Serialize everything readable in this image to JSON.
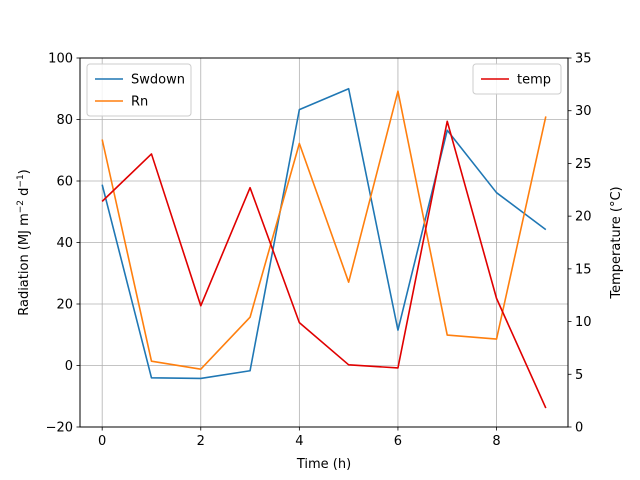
{
  "chart_data": {
    "type": "line",
    "x": [
      0,
      1,
      2,
      3,
      4,
      5,
      6,
      7,
      8,
      9
    ],
    "xlabel": "Time (h)",
    "xlim": [
      -0.45,
      9.45
    ],
    "xticks": [
      0,
      2,
      4,
      6,
      8
    ],
    "ylabel_left": "Radiation (MJ m−2 d−1)",
    "ylim_left": [
      -20,
      100
    ],
    "yticks_left": [
      -20,
      0,
      20,
      40,
      60,
      80,
      100
    ],
    "ylabel_right": "Temperature (°C)",
    "ylim_right": [
      0,
      35
    ],
    "yticks_right": [
      0,
      5,
      10,
      15,
      20,
      25,
      30,
      35
    ],
    "grid": true,
    "legend_left": "top-left",
    "legend_right": "top-right",
    "series": [
      {
        "name": "Swdown",
        "axis": "left",
        "color": "#1f77b4",
        "values": [
          58.8,
          -4.0,
          -4.2,
          -1.7,
          83.2,
          90.0,
          11.5,
          76.5,
          56.2,
          44.2
        ]
      },
      {
        "name": "Rn",
        "axis": "left",
        "color": "#ff7f0e",
        "values": [
          73.5,
          1.4,
          -1.2,
          15.7,
          72.2,
          27.1,
          89.2,
          9.9,
          8.6,
          81.0
        ]
      },
      {
        "name": "temp",
        "axis": "right",
        "color": "#e00000",
        "values": [
          21.4,
          25.9,
          11.5,
          22.7,
          9.9,
          5.9,
          5.6,
          29.0,
          12.2,
          1.8
        ]
      }
    ]
  }
}
